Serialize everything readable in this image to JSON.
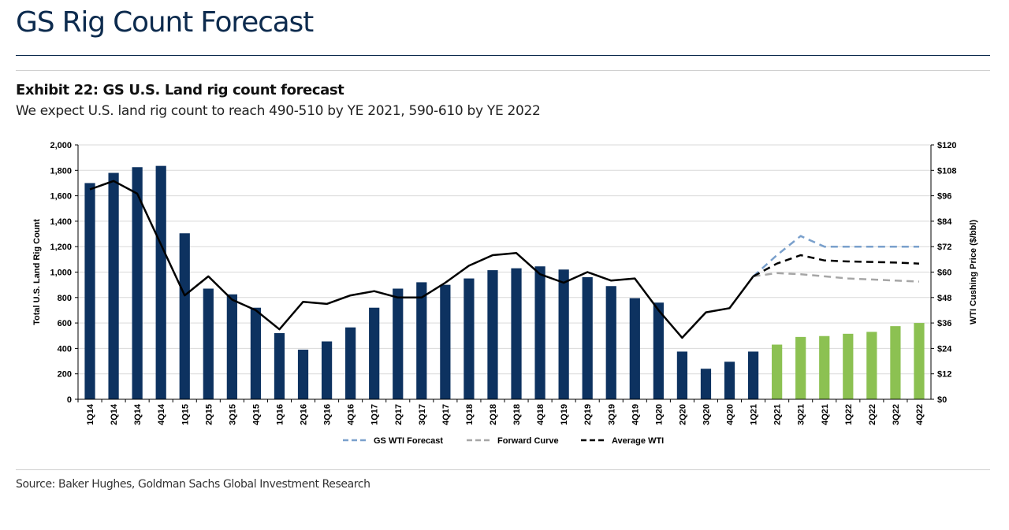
{
  "page": {
    "title": "GS Rig Count Forecast",
    "exhibit_title": "Exhibit 22: GS U.S. Land rig count forecast",
    "exhibit_subtitle": "We expect U.S. land rig count to reach 490-510 by YE 2021, 590-610 by YE 2022",
    "source": "Source: Baker Hughes, Goldman Sachs Global Investment Research"
  },
  "colors": {
    "actual_bar": "#0d3260",
    "forecast_bar": "#8cc152",
    "wti_line": "#000000",
    "gs_forecast_line": "#7aa0cc",
    "forward_curve_line": "#a6a6a6",
    "gridline": "#d9d9d9"
  },
  "chart_data": {
    "type": "bar",
    "categories": [
      "1Q14",
      "2Q14",
      "3Q14",
      "4Q14",
      "1Q15",
      "2Q15",
      "3Q15",
      "4Q15",
      "1Q16",
      "2Q16",
      "3Q16",
      "4Q16",
      "1Q17",
      "2Q17",
      "3Q17",
      "4Q17",
      "1Q18",
      "2Q18",
      "3Q18",
      "4Q18",
      "1Q19",
      "2Q19",
      "3Q19",
      "4Q19",
      "1Q20",
      "2Q20",
      "3Q20",
      "4Q20",
      "1Q21",
      "2Q21",
      "3Q21",
      "4Q21",
      "1Q22",
      "2Q22",
      "3Q22",
      "4Q22"
    ],
    "forecast_start_index": 29,
    "series": [
      {
        "name": "Total U.S. Land Rig Count",
        "type": "bar",
        "axis": "left",
        "values": [
          1700,
          1780,
          1825,
          1835,
          1305,
          870,
          825,
          720,
          520,
          390,
          455,
          565,
          720,
          870,
          920,
          900,
          950,
          1015,
          1030,
          1045,
          1020,
          960,
          890,
          795,
          760,
          375,
          240,
          295,
          375,
          430,
          490,
          497,
          515,
          530,
          575,
          600
        ]
      },
      {
        "name": "WTI Cushing Price (actual)",
        "type": "line",
        "axis": "right",
        "values": [
          99,
          103,
          97,
          73,
          49,
          58,
          47,
          42,
          33,
          46,
          45,
          49,
          51,
          48,
          48,
          55,
          63,
          68,
          69,
          59,
          55,
          60,
          56,
          57,
          42,
          29,
          41,
          43,
          58,
          null,
          null,
          null,
          null,
          null,
          null,
          null
        ]
      },
      {
        "name": "GS WTI Forecast",
        "type": "line",
        "axis": "right",
        "dashed": true,
        "values": [
          null,
          null,
          null,
          null,
          null,
          null,
          null,
          null,
          null,
          null,
          null,
          null,
          null,
          null,
          null,
          null,
          null,
          null,
          null,
          null,
          null,
          null,
          null,
          null,
          null,
          null,
          null,
          null,
          58,
          68,
          77,
          72,
          72,
          72,
          72,
          72
        ]
      },
      {
        "name": "Forward Curve",
        "type": "line",
        "axis": "right",
        "dashed": true,
        "values": [
          null,
          null,
          null,
          null,
          null,
          null,
          null,
          null,
          null,
          null,
          null,
          null,
          null,
          null,
          null,
          null,
          null,
          null,
          null,
          null,
          null,
          null,
          null,
          null,
          null,
          null,
          null,
          null,
          58,
          59.5,
          59,
          58,
          57,
          56.5,
          56,
          55.5
        ]
      },
      {
        "name": "Average WTI",
        "type": "line",
        "axis": "right",
        "dashed": true,
        "values": [
          null,
          null,
          null,
          null,
          null,
          null,
          null,
          null,
          null,
          null,
          null,
          null,
          null,
          null,
          null,
          null,
          null,
          null,
          null,
          null,
          null,
          null,
          null,
          null,
          null,
          null,
          null,
          null,
          58,
          64,
          68,
          65.5,
          65,
          64.8,
          64.5,
          64
        ]
      }
    ],
    "ylabel": "Total U.S. Land Rig Count",
    "ylim": [
      0,
      2000
    ],
    "yticks": [
      "0",
      "200",
      "400",
      "600",
      "800",
      "1,000",
      "1,200",
      "1,400",
      "1,600",
      "1,800",
      "2,000"
    ],
    "y2label": "WTI Cushing Price ($/bbl)",
    "y2lim": [
      0,
      120
    ],
    "y2ticks": [
      "$0",
      "$12",
      "$24",
      "$36",
      "$48",
      "$60",
      "$72",
      "$84",
      "$96",
      "$108",
      "$120"
    ],
    "legend": [
      "GS WTI Forecast",
      "Forward Curve",
      "Average WTI"
    ],
    "legend_position": "bottom"
  }
}
